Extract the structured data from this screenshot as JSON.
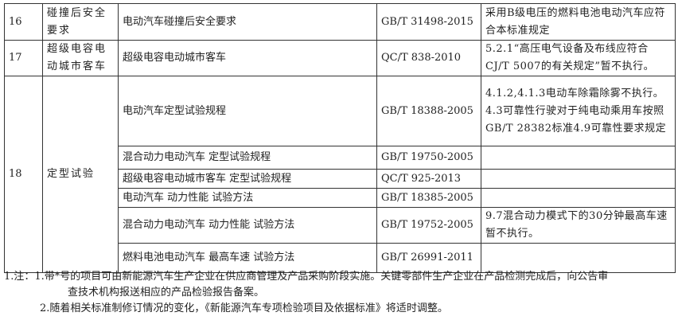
{
  "rows": [
    {
      "no": "16",
      "item": "碰撞后安全要求",
      "name": "电动汽车碰撞后安全要求",
      "std": "GB/T 31498-2015",
      "remark": "采用B级电压的燃料电池电动汽车应符合本标准规定"
    },
    {
      "no": "17",
      "item": "超级电容电动城市客车",
      "name": "超级电容电动城市客车",
      "std": "QC/T 838-2010",
      "remark": "5.2.1“高压电气设备及布线应符合CJ/T 5007的有关规定”暂不执行。"
    },
    {
      "no": "18",
      "item": "定型试验",
      "name": "电动汽车定型试验规程",
      "std": "GB/T 18388-2005",
      "remark": "4.1.2,4.1.3电动车除霜除雾不执行。4.3可靠性行驶对于纯电动乘用车按照GB/T 28382标准4.9可靠性要求规定"
    },
    {
      "name": "混合动力电动汽车 定型试验规程",
      "std": "GB/T 19750-2005",
      "remark": ""
    },
    {
      "name": "超级电容电动城市客车 定型试验规程",
      "std": "QC/T 925-2013",
      "remark": ""
    },
    {
      "name": "电动汽车 动力性能 试验方法",
      "std": "GB/T 18385-2005",
      "remark": ""
    },
    {
      "name": "混合动力电动汽车 动力性能 试验方法",
      "std": "GB/T 19752-2005",
      "remark": "9.7混合动力模式下的30分钟最高车速暂不执行。"
    },
    {
      "name": "燃料电池电动汽车 最高车速 试验方法",
      "std": "GB/T 26991-2011",
      "remark": ""
    }
  ],
  "notes": {
    "line1": "1.注：1.带*号的项目可由新能源汽车生产企业在供应商管理及产品采购阶段实施。关键零部件生产企业在产品检测完成后，向公告审",
    "line2": "查技术机构报送相应的产品检验报告备案。",
    "line3": "2.随着相关标准制修订情况的变化，《新能源汽车专项检验项目及依据标准》将适时调整。"
  }
}
